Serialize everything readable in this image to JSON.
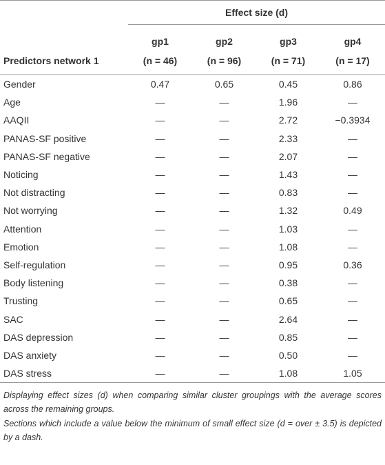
{
  "table": {
    "spanner": "Effect size (d)",
    "stub_header": "Predictors network 1",
    "groups": [
      "gp1",
      "gp2",
      "gp3",
      "gp4"
    ],
    "group_n": [
      "(n = 46)",
      "(n = 96)",
      "(n = 71)",
      "(n = 17)"
    ],
    "rows": [
      [
        "Gender",
        "0.47",
        "0.65",
        "0.45",
        "0.86"
      ],
      [
        "Age",
        "—",
        "—",
        "1.96",
        "—"
      ],
      [
        "AAQII",
        "—",
        "—",
        "2.72",
        "−0.3934"
      ],
      [
        "PANAS-SF positive",
        "—",
        "—",
        "2.33",
        "—"
      ],
      [
        "PANAS-SF negative",
        "—",
        "—",
        "2.07",
        "—"
      ],
      [
        "Noticing",
        "—",
        "—",
        "1.43",
        "—"
      ],
      [
        "Not distracting",
        "—",
        "—",
        "0.83",
        "—"
      ],
      [
        "Not worrying",
        "—",
        "—",
        "1.32",
        "0.49"
      ],
      [
        "Attention",
        "—",
        "—",
        "1.03",
        "—"
      ],
      [
        "Emotion",
        "—",
        "—",
        "1.08",
        "—"
      ],
      [
        "Self-regulation",
        "—",
        "—",
        "0.95",
        "0.36"
      ],
      [
        "Body listening",
        "—",
        "—",
        "0.38",
        "—"
      ],
      [
        "Trusting",
        "—",
        "—",
        "0.65",
        "—"
      ],
      [
        "SAC",
        "—",
        "—",
        "2.64",
        "—"
      ],
      [
        "DAS depression",
        "—",
        "—",
        "0.85",
        "—"
      ],
      [
        "DAS anxiety",
        "—",
        "—",
        "0.50",
        "—"
      ],
      [
        "DAS stress",
        "—",
        "—",
        "1.08",
        "1.05"
      ]
    ],
    "notes": [
      "Displaying effect sizes (d) when comparing similar cluster groupings with the average scores across the remaining groups.",
      "Sections which include a value below the minimum of small effect size (d = over ± 3.5) is depicted by a dash."
    ]
  }
}
